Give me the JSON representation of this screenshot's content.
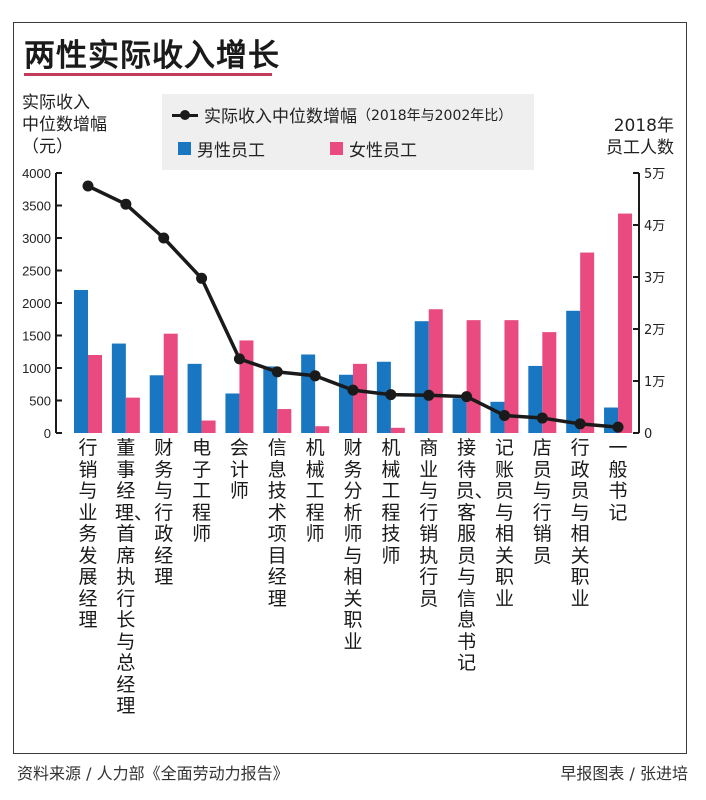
{
  "title": "两性实际收入增长",
  "colors": {
    "male": "#1877c0",
    "female": "#e94a80",
    "line": "#1a1a1a",
    "legend_bg": "#efefef",
    "title_underline": "#c23a5a"
  },
  "legend": {
    "line_label": "实际收入中位数增幅",
    "line_note": "（2018年与2002年比）",
    "male_label": "男性员工",
    "female_label": "女性员工"
  },
  "footer": {
    "source": "资料来源 / 人力部《全面劳动力报告》",
    "credit": "早报图表 / 张进培"
  },
  "chart_data": {
    "type": "bar+line",
    "title": "两性实际收入增长",
    "y_left": {
      "label_lines": [
        "实际收入",
        "中位数增幅",
        "（元）"
      ],
      "range": [
        0,
        4000
      ],
      "ticks": [
        "0",
        "500",
        "1000",
        "1500",
        "2000",
        "2500",
        "3000",
        "3500",
        "4000"
      ]
    },
    "y_right": {
      "label_lines": [
        "2018年",
        "员工人数"
      ],
      "range": [
        0,
        50000
      ],
      "ticks": [
        "0",
        "1万",
        "2万",
        "3万",
        "4万",
        "5万"
      ]
    },
    "categories": [
      "行销与业务发展经理",
      "董事经理、首席执行长与总经理",
      "财务与行政经理",
      "电子工程师",
      "会计师",
      "信息技术项目经理",
      "机械工程师",
      "财务分析师与相关职业",
      "机械工程技师",
      "商业与行销执行员",
      "接待员、客服员与信息书记",
      "记账员与相关职业",
      "店员与行销员",
      "行政员与相关职业",
      "一般书记"
    ],
    "series": [
      {
        "name": "男性员工",
        "type": "bar",
        "axis": "right",
        "values": [
          27500,
          17200,
          11100,
          13300,
          7600,
          12800,
          15100,
          11200,
          13700,
          21500,
          6700,
          6000,
          12900,
          23500,
          4900
        ]
      },
      {
        "name": "女性员工",
        "type": "bar",
        "axis": "right",
        "values": [
          15000,
          6800,
          19100,
          2400,
          17800,
          4600,
          1300,
          13300,
          1000,
          23800,
          21700,
          21700,
          19400,
          34700,
          42200
        ]
      },
      {
        "name": "实际收入中位数增幅（2018年与2002年比）",
        "type": "line",
        "axis": "left",
        "values": [
          3800,
          3520,
          3000,
          2380,
          1140,
          940,
          880,
          660,
          590,
          580,
          560,
          270,
          230,
          140,
          90
        ]
      }
    ],
    "grid": false,
    "legend_position": "top-center"
  }
}
